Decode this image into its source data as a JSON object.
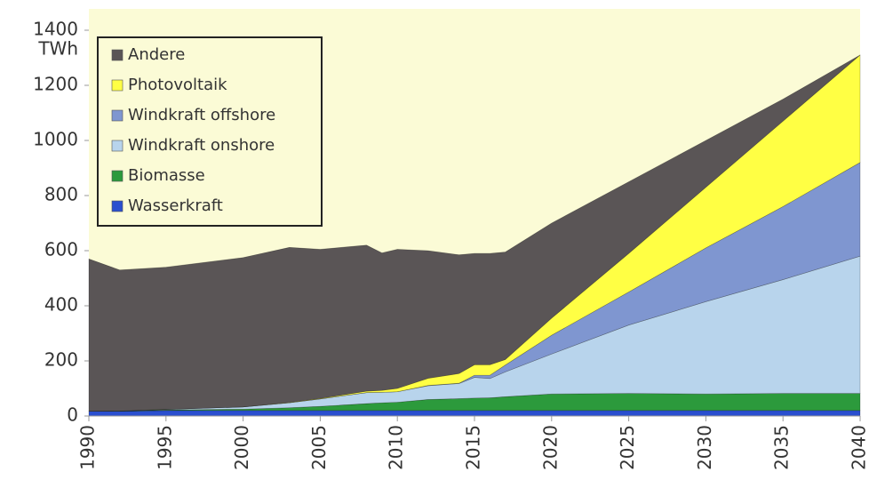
{
  "chart_data": {
    "type": "stacked_area",
    "y_label": "TWh",
    "x": [
      1990,
      1992,
      1995,
      2000,
      2003,
      2005,
      2008,
      2009,
      2010,
      2012,
      2014,
      2015,
      2016,
      2017,
      2020,
      2025,
      2030,
      2035,
      2040
    ],
    "series": [
      {
        "name": "Wasserkraft",
        "color": "#2a4fcf",
        "values": [
          17,
          17,
          20,
          20,
          20,
          20,
          20,
          20,
          20,
          20,
          20,
          20,
          20,
          20,
          20,
          20,
          20,
          20,
          20
        ]
      },
      {
        "name": "Biomasse",
        "color": "#2c9a3c",
        "values": [
          0,
          1,
          2,
          5,
          10,
          15,
          25,
          28,
          30,
          40,
          43,
          45,
          46,
          50,
          60,
          62,
          60,
          62,
          62
        ]
      },
      {
        "name": "Windkraft onshore",
        "color": "#b8d4ec",
        "values": [
          0,
          0,
          2,
          8,
          18,
          27,
          40,
          38,
          38,
          50,
          55,
          75,
          70,
          90,
          145,
          248,
          335,
          413,
          498
        ]
      },
      {
        "name": "Windkraft offshore",
        "color": "#7f96d0",
        "values": [
          0,
          0,
          0,
          0,
          0,
          0,
          0,
          0,
          0,
          1,
          1,
          8,
          12,
          25,
          68,
          120,
          195,
          265,
          340
        ]
      },
      {
        "name": "Photovoltaik",
        "color": "#ffff44",
        "values": [
          0,
          0,
          0,
          0,
          1,
          2,
          5,
          7,
          12,
          26,
          35,
          38,
          38,
          20,
          62,
          140,
          220,
          310,
          390
        ]
      },
      {
        "name": "Andere",
        "color": "#5a5556",
        "values": [
          553,
          512,
          516,
          542,
          563,
          541,
          530,
          499,
          505,
          463,
          431,
          404,
          404,
          390,
          345,
          260,
          170,
          80,
          0
        ]
      }
    ],
    "xlim": [
      1990,
      2040
    ],
    "xticks": [
      1990,
      1995,
      2000,
      2005,
      2010,
      2015,
      2020,
      2025,
      2030,
      2035,
      2040
    ],
    "ylim": [
      0,
      1400
    ],
    "yticks": [
      0,
      200,
      400,
      600,
      800,
      1000,
      1200,
      1400
    ],
    "legend": "top-left"
  }
}
